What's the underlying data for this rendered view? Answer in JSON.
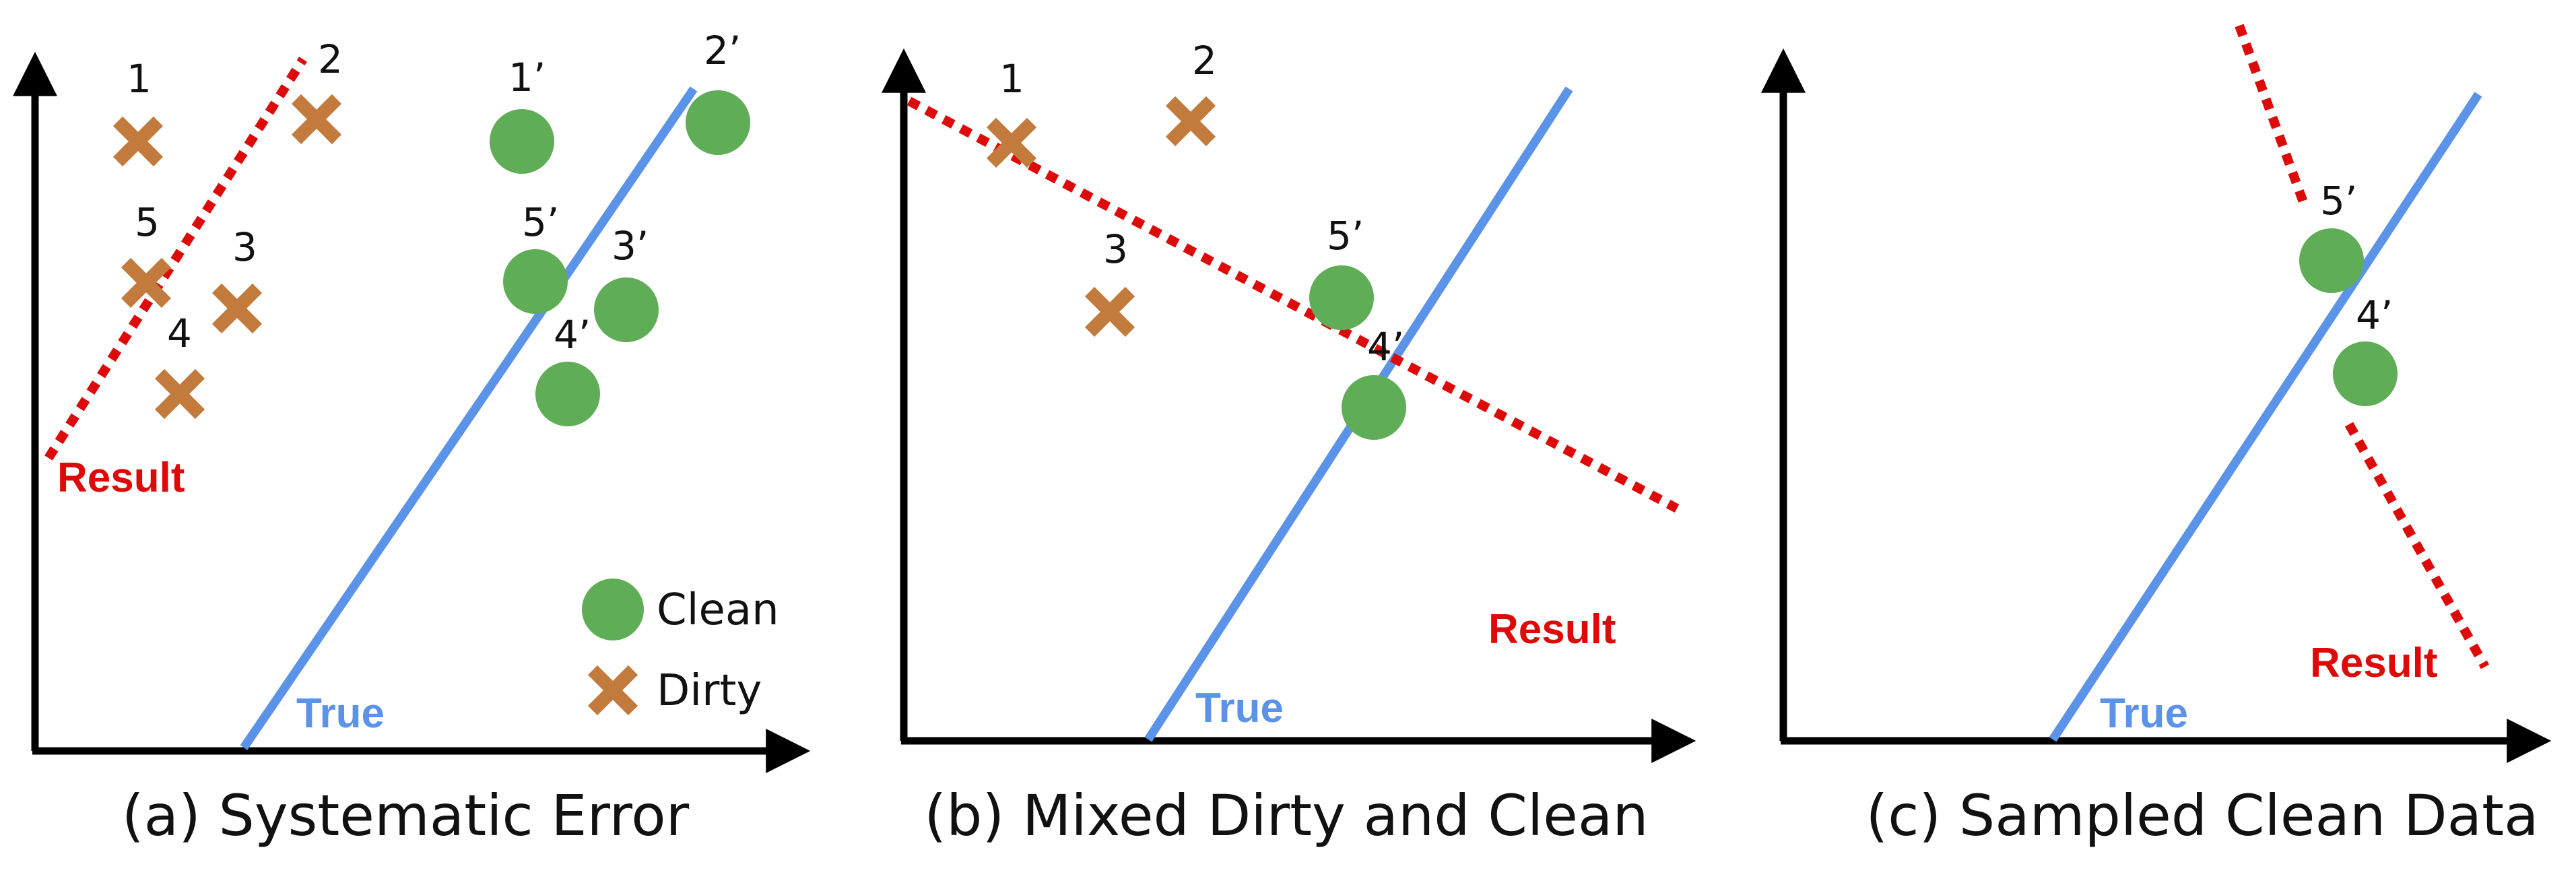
{
  "colors": {
    "clean": "#5fad56",
    "dirty": "#c27b3c",
    "true_line": "#5b93e8",
    "result_line": "#dd0a0a",
    "axis": "#000000"
  },
  "labels": {
    "true_line": "True",
    "result_line": "Result"
  },
  "legend": {
    "clean": "Clean",
    "dirty": "Dirty"
  },
  "panels": [
    {
      "id": "a",
      "caption": "(a) Systematic Error",
      "points": [
        {
          "label": "1",
          "kind": "dirty"
        },
        {
          "label": "2",
          "kind": "dirty"
        },
        {
          "label": "5",
          "kind": "dirty"
        },
        {
          "label": "3",
          "kind": "dirty"
        },
        {
          "label": "4",
          "kind": "dirty"
        },
        {
          "label": "1’",
          "kind": "clean"
        },
        {
          "label": "2’",
          "kind": "clean"
        },
        {
          "label": "5’",
          "kind": "clean"
        },
        {
          "label": "3’",
          "kind": "clean"
        },
        {
          "label": "4’",
          "kind": "clean"
        }
      ]
    },
    {
      "id": "b",
      "caption": "(b) Mixed Dirty and Clean",
      "points": [
        {
          "label": "1",
          "kind": "dirty"
        },
        {
          "label": "2",
          "kind": "dirty"
        },
        {
          "label": "3",
          "kind": "dirty"
        },
        {
          "label": "5’",
          "kind": "clean"
        },
        {
          "label": "4’",
          "kind": "clean"
        }
      ]
    },
    {
      "id": "c",
      "caption": "(c) Sampled Clean Data",
      "points": [
        {
          "label": "5’",
          "kind": "clean"
        },
        {
          "label": "4’",
          "kind": "clean"
        }
      ]
    }
  ]
}
